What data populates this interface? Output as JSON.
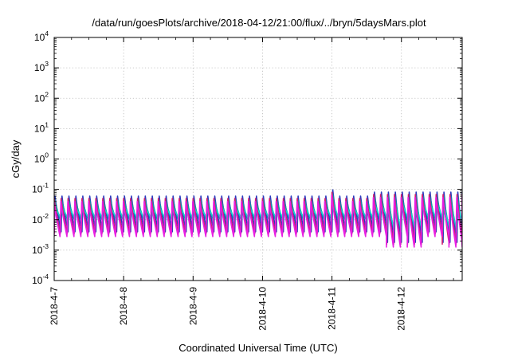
{
  "chart_data": {
    "type": "line",
    "title": "/data/run/goesPlots/archive/2018-04-12/21:00/flux/../bryn/5daysMars.plot",
    "xlabel": "Coordinated Universal Time (UTC)",
    "ylabel": "cGy/day",
    "yscale": "log",
    "ylim": [
      0.0001,
      10000
    ],
    "y_ticks": [
      {
        "base": "10",
        "exp": "4",
        "value": 10000
      },
      {
        "base": "10",
        "exp": "3",
        "value": 1000
      },
      {
        "base": "10",
        "exp": "2",
        "value": 100
      },
      {
        "base": "10",
        "exp": "1",
        "value": 10
      },
      {
        "base": "10",
        "exp": "0",
        "value": 1
      },
      {
        "base": "10",
        "exp": "-1",
        "value": 0.1
      },
      {
        "base": "10",
        "exp": "-2",
        "value": 0.01
      },
      {
        "base": "10",
        "exp": "-3",
        "value": 0.001
      },
      {
        "base": "10",
        "exp": "-4",
        "value": 0.0001
      }
    ],
    "x_tick_labels": [
      "2018-4-7",
      "2018-4-8",
      "2018-4-9",
      "2018-4-10",
      "2018-4-11",
      "2018-4-12"
    ],
    "xlim": [
      "2018-04-07T00:00",
      "2018-04-12T21:00"
    ],
    "grid": true,
    "grid_style": "dotted",
    "legend": "none",
    "cycles_per_day": 10,
    "series": [
      {
        "color": "#2c3bbf",
        "peak": 0.06,
        "trough": 0.004
      },
      {
        "color": "#00a2a6",
        "peak": 0.045,
        "trough": 0.009
      },
      {
        "color": "#14d3cf",
        "peak": 0.03,
        "trough": 0.012
      },
      {
        "color": "#d21d6e",
        "peak": 0.05,
        "trough": 0.0035
      },
      {
        "color": "#e81ee3",
        "peak": 0.04,
        "trough": 0.0028
      }
    ],
    "features": [
      {
        "x": "2018-04-11T00:00",
        "peak_value": 0.1
      },
      {
        "x": "2018-04-11T22:00",
        "dip_value": 0.005
      },
      {
        "x": "2018-04-12T05:00",
        "dip_value": 0.004
      },
      {
        "x": "2018-04-12T19:00",
        "dip_value": 0.0045
      }
    ]
  }
}
